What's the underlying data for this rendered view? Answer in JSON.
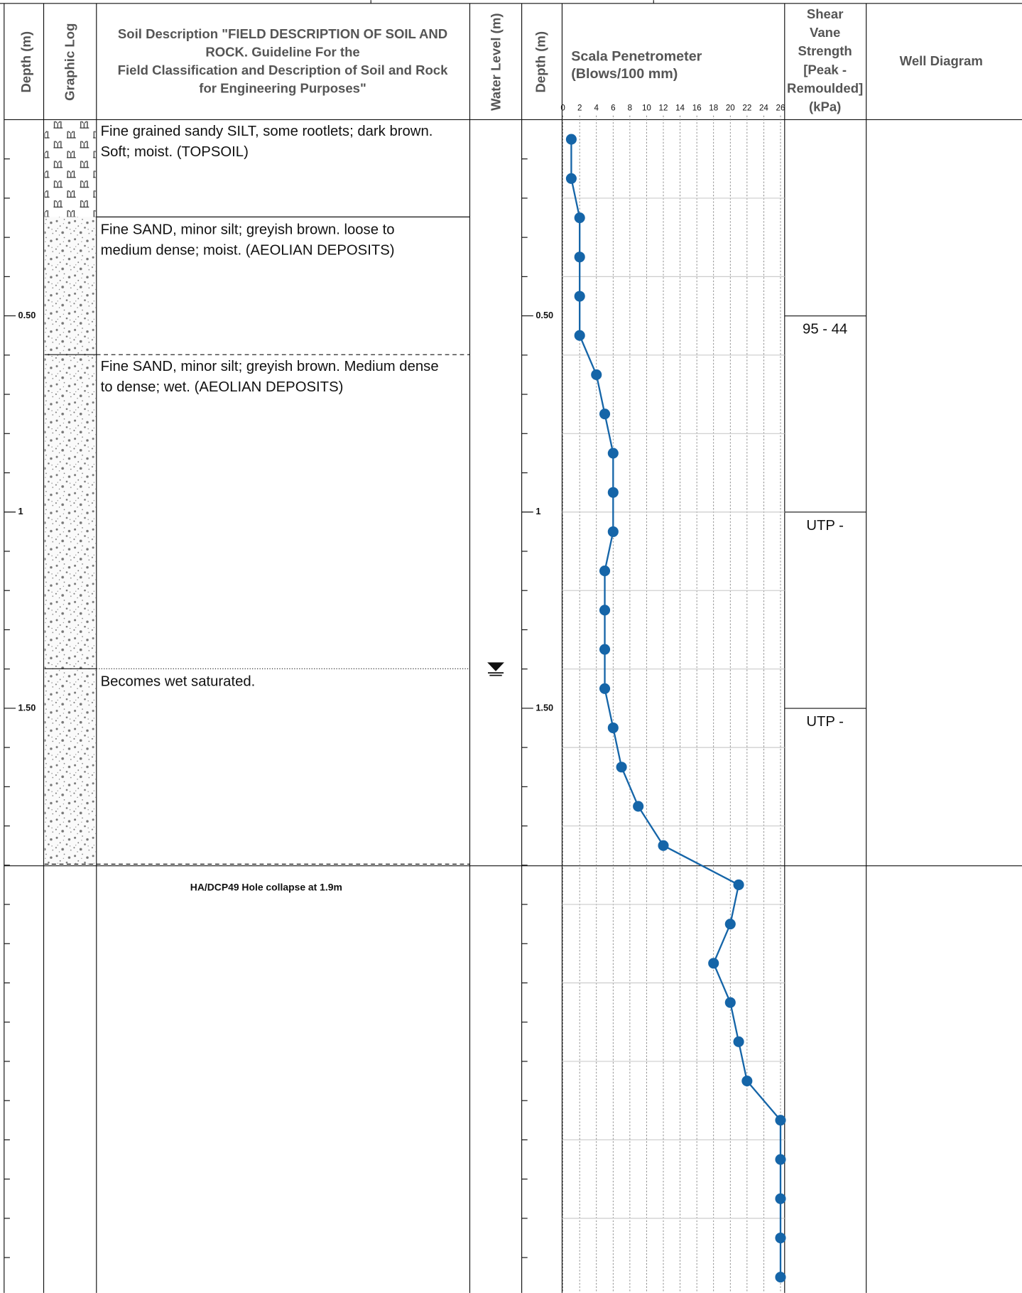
{
  "header": {
    "depth": "Depth (m)",
    "graphic_log": "Graphic Log",
    "soil_description": [
      "Soil Description \"FIELD DESCRIPTION OF SOIL AND",
      "ROCK. Guideline For the",
      "Field Classification and Description of Soil and Rock",
      "for Engineering Purposes\""
    ],
    "water_level": "Water Level (m)",
    "depth_2": "Depth (m)",
    "scala": [
      "Scala Penetrometer",
      "(Blows/100 mm)"
    ],
    "shear_vane": [
      "Shear",
      "Vane",
      "Strength",
      "[Peak -",
      "Remoulded]",
      "(kPa)"
    ],
    "well_diagram": "Well Diagram"
  },
  "layers": [
    [
      "Fine grained sandy SILT, some rootlets; dark brown.",
      "Soft; moist. (TOPSOIL)"
    ],
    [
      "Fine SAND, minor silt; greyish brown. loose to",
      "medium dense; moist. (AEOLIAN DEPOSITS)"
    ],
    [
      "Fine SAND, minor silt; greyish brown. Medium dense",
      "to dense; wet. (AEOLIAN DEPOSITS)"
    ],
    [
      "Becomes wet saturated."
    ]
  ],
  "shear_vane": [
    "95 - 44",
    "UTP -",
    "UTP -"
  ],
  "note": "HA/DCP49 Hole collapse at 1.9m",
  "depth_axis": {
    "ylim": [
      0,
      2.99
    ],
    "ticks": [
      {
        "value": 0.5,
        "label": "0.50"
      },
      1,
      {
        "value": 1.5,
        "label": "1.50"
      }
    ],
    "minor_ticks": [
      0.1,
      0.2,
      0.3,
      0.4,
      0.6,
      0.7,
      0.8,
      0.9,
      1.1,
      1.2,
      1.3,
      1.4,
      1.6,
      1.7,
      1.8,
      1.9,
      2.0,
      2.1,
      2.2,
      2.3,
      2.4,
      2.5,
      2.6,
      2.7,
      2.8,
      2.9
    ]
  },
  "penetrometer": {
    "type": "line",
    "color": "#1565a8",
    "xlim": [
      0,
      26
    ],
    "xticks": [
      0,
      2,
      4,
      6,
      8,
      10,
      12,
      14,
      16,
      18,
      20,
      22,
      24,
      26
    ],
    "grid_depths": [
      0.2,
      0.4,
      0.6,
      0.8,
      1.0,
      1.2,
      1.4,
      1.6,
      1.8,
      2.0,
      2.2,
      2.4,
      2.6,
      2.8
    ],
    "depth": [
      0.05,
      0.15,
      0.25,
      0.35,
      0.45,
      0.55,
      0.65,
      0.75,
      0.85,
      0.95,
      1.05,
      1.15,
      1.25,
      1.35,
      1.45,
      1.55,
      1.65,
      1.75,
      1.85,
      1.95,
      2.05,
      2.15,
      2.25,
      2.35,
      2.45,
      2.55,
      2.65,
      2.75,
      2.85,
      2.95
    ],
    "values": [
      1,
      1,
      2,
      2,
      2,
      2,
      4,
      5,
      6,
      6,
      6,
      5,
      5,
      5,
      5,
      6,
      7,
      9,
      12,
      21,
      20,
      18,
      20,
      21,
      22,
      26,
      26,
      26,
      26,
      26
    ]
  }
}
